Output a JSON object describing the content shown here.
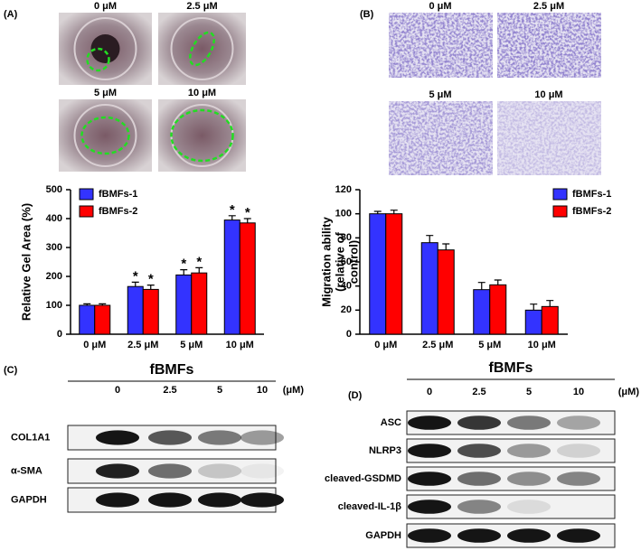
{
  "panel_a": {
    "label": "(A)",
    "images": [
      "0 μM",
      "2.5 μM",
      "5 μM",
      "10 μM"
    ]
  },
  "panel_b": {
    "label": "(B)",
    "images": [
      "0 μM",
      "2.5 μM",
      "5 μM",
      "10 μM"
    ]
  },
  "chart_data": [
    {
      "type": "bar",
      "ylabel": [
        "Relative Gel Area (%)"
      ],
      "categories": [
        "0 μM",
        "2.5 μM",
        "5 μM",
        "10 μM"
      ],
      "series": [
        {
          "name": "fBMFs-1",
          "color": "#3333ff",
          "values": [
            100,
            165,
            205,
            395
          ],
          "errors": [
            5,
            15,
            18,
            15
          ],
          "significance": [
            null,
            "*",
            "*",
            "*"
          ]
        },
        {
          "name": "fBMFs-2",
          "color": "#ff0000",
          "values": [
            100,
            155,
            212,
            385
          ],
          "errors": [
            5,
            15,
            18,
            15
          ],
          "significance": [
            null,
            "*",
            "*",
            "*"
          ]
        }
      ],
      "ylim": [
        0,
        500
      ],
      "yticks": [
        0,
        100,
        200,
        300,
        400,
        500
      ]
    },
    {
      "type": "bar",
      "ylabel": [
        "Migration ability",
        "(relative of",
        "control)"
      ],
      "categories": [
        "0 μM",
        "2.5 μM",
        "5 μM",
        "10 μM"
      ],
      "series": [
        {
          "name": "fBMFs-1",
          "color": "#3333ff",
          "values": [
            100,
            76,
            37,
            20
          ],
          "errors": [
            2,
            6,
            6,
            5
          ]
        },
        {
          "name": "fBMFs-2",
          "color": "#ff0000",
          "values": [
            100,
            70,
            41,
            23
          ],
          "errors": [
            3,
            5,
            4,
            5
          ]
        }
      ],
      "ylim": [
        0,
        120
      ],
      "yticks": [
        0,
        20,
        40,
        60,
        80,
        100,
        120
      ]
    }
  ],
  "panel_c": {
    "label": "(C)",
    "group": "fBMFs",
    "unit": "(μM)",
    "concentrations": [
      "0",
      "2.5",
      "5",
      "10"
    ],
    "rows": [
      "COL1A1",
      "α-SMA",
      "GAPDH"
    ]
  },
  "panel_d": {
    "label": "(D)",
    "group": "fBMFs",
    "unit": "(μM)",
    "concentrations": [
      "0",
      "2.5",
      "5",
      "10"
    ],
    "rows": [
      "ASC",
      "NLRP3",
      "cleaved-GSDMD",
      "cleaved-IL-1β",
      "GAPDH"
    ]
  }
}
